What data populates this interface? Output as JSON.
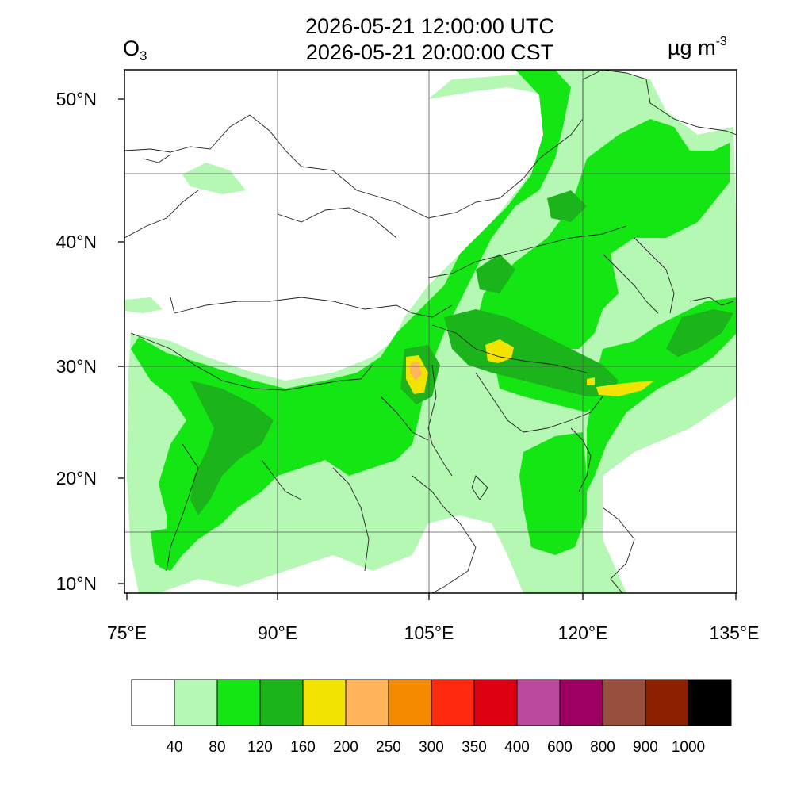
{
  "title": {
    "line1": "2026-05-21 12:00:00 UTC",
    "line2": "2026-05-21 20:00:00 CST"
  },
  "species": {
    "base": "O",
    "sub": "3"
  },
  "unit": {
    "base": "µg m",
    "exp": "-3"
  },
  "axes": {
    "lat_labels": [
      "50°N",
      "40°N",
      "30°N",
      "20°N",
      "10°N"
    ],
    "lat_values": [
      50,
      40,
      30,
      20,
      10
    ],
    "lon_labels": [
      "75°E",
      "90°E",
      "105°E",
      "120°E",
      "135°E"
    ],
    "lon_values": [
      75,
      90,
      105,
      120,
      135
    ],
    "gridlines": true
  },
  "colorbar": {
    "labels": [
      "40",
      "80",
      "120",
      "160",
      "200",
      "250",
      "300",
      "350",
      "400",
      "600",
      "800",
      "900",
      "1000"
    ],
    "colors": [
      "#ffffff",
      "#b4f8b4",
      "#14e614",
      "#1bb41b",
      "#f2e400",
      "#ffb45c",
      "#f58a00",
      "#ff2a10",
      "#dc0010",
      "#ba4a9e",
      "#9c0060",
      "#97503e",
      "#8c2000",
      "#000000"
    ]
  },
  "fields": {
    "level1_color": "#b4f8b4",
    "level2_color": "#14e614",
    "level3_color": "#1bb41b",
    "level4_color": "#f2e400",
    "level5_color": "#ffb45c"
  }
}
